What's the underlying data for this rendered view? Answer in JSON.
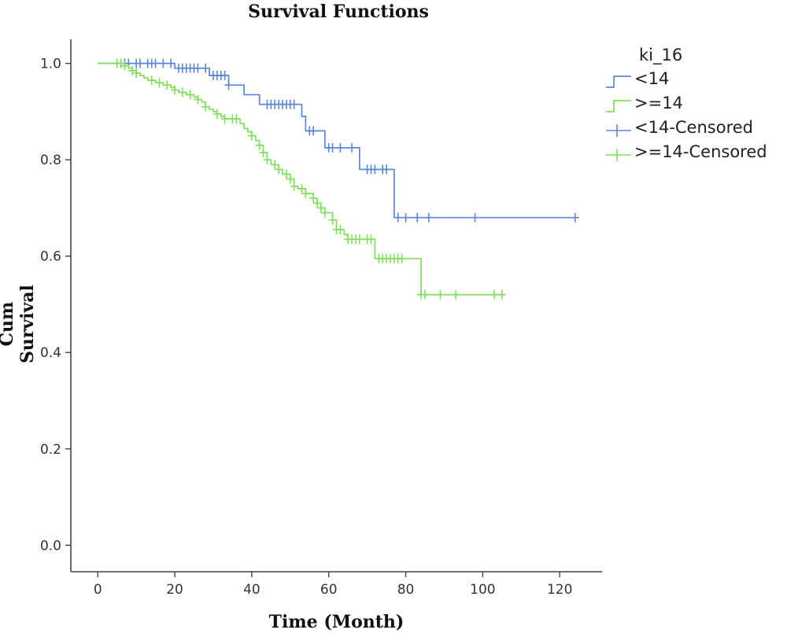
{
  "chart_data": {
    "type": "line",
    "title": "Survival Functions",
    "xlabel": "Time (Month)",
    "ylabel": "Cum Survival",
    "xlim": [
      -7,
      131
    ],
    "ylim": [
      -0.055,
      1.05
    ],
    "xticks": [
      0,
      20,
      40,
      60,
      80,
      100,
      120
    ],
    "yticks": [
      0.0,
      0.2,
      0.4,
      0.6,
      0.8,
      1.0
    ],
    "ytick_labels": [
      "0.0",
      "0.2",
      "0.4",
      "0.6",
      "0.8",
      "1.0"
    ],
    "grid": false,
    "legend": {
      "title": "ki_16",
      "position": "top-right",
      "entries": [
        {
          "label": "<14",
          "kind": "step",
          "series": 0
        },
        {
          "label": ">=14",
          "kind": "step",
          "series": 1
        },
        {
          "label": "<14-Censored",
          "kind": "censor",
          "series": 0
        },
        {
          "label": ">=14-Censored",
          "kind": "censor",
          "series": 1
        }
      ]
    },
    "series": [
      {
        "name": "<14",
        "color": "#5b86d9",
        "steps": [
          [
            0,
            1.0
          ],
          [
            20,
            0.99
          ],
          [
            29,
            0.975
          ],
          [
            34,
            0.955
          ],
          [
            38,
            0.935
          ],
          [
            42,
            0.915
          ],
          [
            53,
            0.89
          ],
          [
            54,
            0.86
          ],
          [
            59,
            0.825
          ],
          [
            68,
            0.78
          ],
          [
            77,
            0.68
          ],
          [
            124,
            0.68
          ]
        ],
        "censored": [
          [
            6,
            1.0
          ],
          [
            7,
            1.0
          ],
          [
            8,
            1.0
          ],
          [
            10,
            1.0
          ],
          [
            11,
            1.0
          ],
          [
            13,
            1.0
          ],
          [
            14,
            1.0
          ],
          [
            15,
            1.0
          ],
          [
            17,
            1.0
          ],
          [
            19,
            1.0
          ],
          [
            21,
            0.99
          ],
          [
            22,
            0.99
          ],
          [
            23,
            0.99
          ],
          [
            24,
            0.99
          ],
          [
            25,
            0.99
          ],
          [
            26,
            0.99
          ],
          [
            28,
            0.99
          ],
          [
            30,
            0.975
          ],
          [
            31,
            0.975
          ],
          [
            32,
            0.975
          ],
          [
            33,
            0.975
          ],
          [
            34,
            0.955
          ],
          [
            44,
            0.915
          ],
          [
            45,
            0.915
          ],
          [
            46,
            0.915
          ],
          [
            47,
            0.915
          ],
          [
            48,
            0.915
          ],
          [
            49,
            0.915
          ],
          [
            50,
            0.915
          ],
          [
            51,
            0.915
          ],
          [
            55,
            0.86
          ],
          [
            56,
            0.86
          ],
          [
            60,
            0.825
          ],
          [
            61,
            0.825
          ],
          [
            63,
            0.825
          ],
          [
            66,
            0.825
          ],
          [
            70,
            0.78
          ],
          [
            71,
            0.78
          ],
          [
            72,
            0.78
          ],
          [
            74,
            0.78
          ],
          [
            75,
            0.78
          ],
          [
            78,
            0.68
          ],
          [
            80,
            0.68
          ],
          [
            83,
            0.68
          ],
          [
            86,
            0.68
          ],
          [
            98,
            0.68
          ],
          [
            124,
            0.68
          ]
        ]
      },
      {
        "name": ">=14",
        "color": "#7ee05b",
        "steps": [
          [
            0,
            1.0
          ],
          [
            7,
            0.995
          ],
          [
            8,
            0.99
          ],
          [
            9,
            0.985
          ],
          [
            10,
            0.98
          ],
          [
            11,
            0.975
          ],
          [
            12,
            0.97
          ],
          [
            13,
            0.965
          ],
          [
            15,
            0.96
          ],
          [
            17,
            0.955
          ],
          [
            19,
            0.95
          ],
          [
            20,
            0.945
          ],
          [
            21,
            0.94
          ],
          [
            23,
            0.935
          ],
          [
            25,
            0.93
          ],
          [
            26,
            0.925
          ],
          [
            27,
            0.92
          ],
          [
            28,
            0.91
          ],
          [
            29,
            0.905
          ],
          [
            30,
            0.9
          ],
          [
            31,
            0.895
          ],
          [
            32,
            0.89
          ],
          [
            33,
            0.885
          ],
          [
            37,
            0.875
          ],
          [
            38,
            0.865
          ],
          [
            39,
            0.858
          ],
          [
            40,
            0.85
          ],
          [
            41,
            0.84
          ],
          [
            42,
            0.83
          ],
          [
            43,
            0.815
          ],
          [
            44,
            0.8
          ],
          [
            45,
            0.79
          ],
          [
            47,
            0.78
          ],
          [
            48,
            0.77
          ],
          [
            50,
            0.76
          ],
          [
            51,
            0.745
          ],
          [
            52,
            0.74
          ],
          [
            54,
            0.73
          ],
          [
            56,
            0.72
          ],
          [
            57,
            0.71
          ],
          [
            58,
            0.7
          ],
          [
            59,
            0.69
          ],
          [
            61,
            0.675
          ],
          [
            62,
            0.655
          ],
          [
            64,
            0.645
          ],
          [
            65,
            0.635
          ],
          [
            72,
            0.595
          ],
          [
            84,
            0.52
          ],
          [
            105,
            0.52
          ]
        ],
        "censored": [
          [
            5,
            1.0
          ],
          [
            6,
            1.0
          ],
          [
            7,
            0.995
          ],
          [
            9,
            0.985
          ],
          [
            10,
            0.98
          ],
          [
            14,
            0.965
          ],
          [
            16,
            0.96
          ],
          [
            18,
            0.955
          ],
          [
            20,
            0.945
          ],
          [
            22,
            0.94
          ],
          [
            24,
            0.935
          ],
          [
            26,
            0.925
          ],
          [
            28,
            0.91
          ],
          [
            31,
            0.895
          ],
          [
            33,
            0.885
          ],
          [
            35,
            0.885
          ],
          [
            36,
            0.885
          ],
          [
            40,
            0.85
          ],
          [
            42,
            0.83
          ],
          [
            43,
            0.815
          ],
          [
            44,
            0.8
          ],
          [
            46,
            0.79
          ],
          [
            47,
            0.78
          ],
          [
            49,
            0.77
          ],
          [
            50,
            0.76
          ],
          [
            51,
            0.745
          ],
          [
            53,
            0.74
          ],
          [
            54,
            0.73
          ],
          [
            56,
            0.72
          ],
          [
            57,
            0.71
          ],
          [
            58,
            0.7
          ],
          [
            59,
            0.69
          ],
          [
            61,
            0.675
          ],
          [
            62,
            0.655
          ],
          [
            63,
            0.655
          ],
          [
            65,
            0.635
          ],
          [
            66,
            0.635
          ],
          [
            67,
            0.635
          ],
          [
            68,
            0.635
          ],
          [
            70,
            0.635
          ],
          [
            71,
            0.635
          ],
          [
            73,
            0.595
          ],
          [
            74,
            0.595
          ],
          [
            75,
            0.595
          ],
          [
            76,
            0.595
          ],
          [
            77,
            0.595
          ],
          [
            78,
            0.595
          ],
          [
            79,
            0.595
          ],
          [
            84,
            0.52
          ],
          [
            85,
            0.52
          ],
          [
            89,
            0.52
          ],
          [
            93,
            0.52
          ],
          [
            103,
            0.52
          ],
          [
            105,
            0.52
          ]
        ]
      }
    ]
  }
}
